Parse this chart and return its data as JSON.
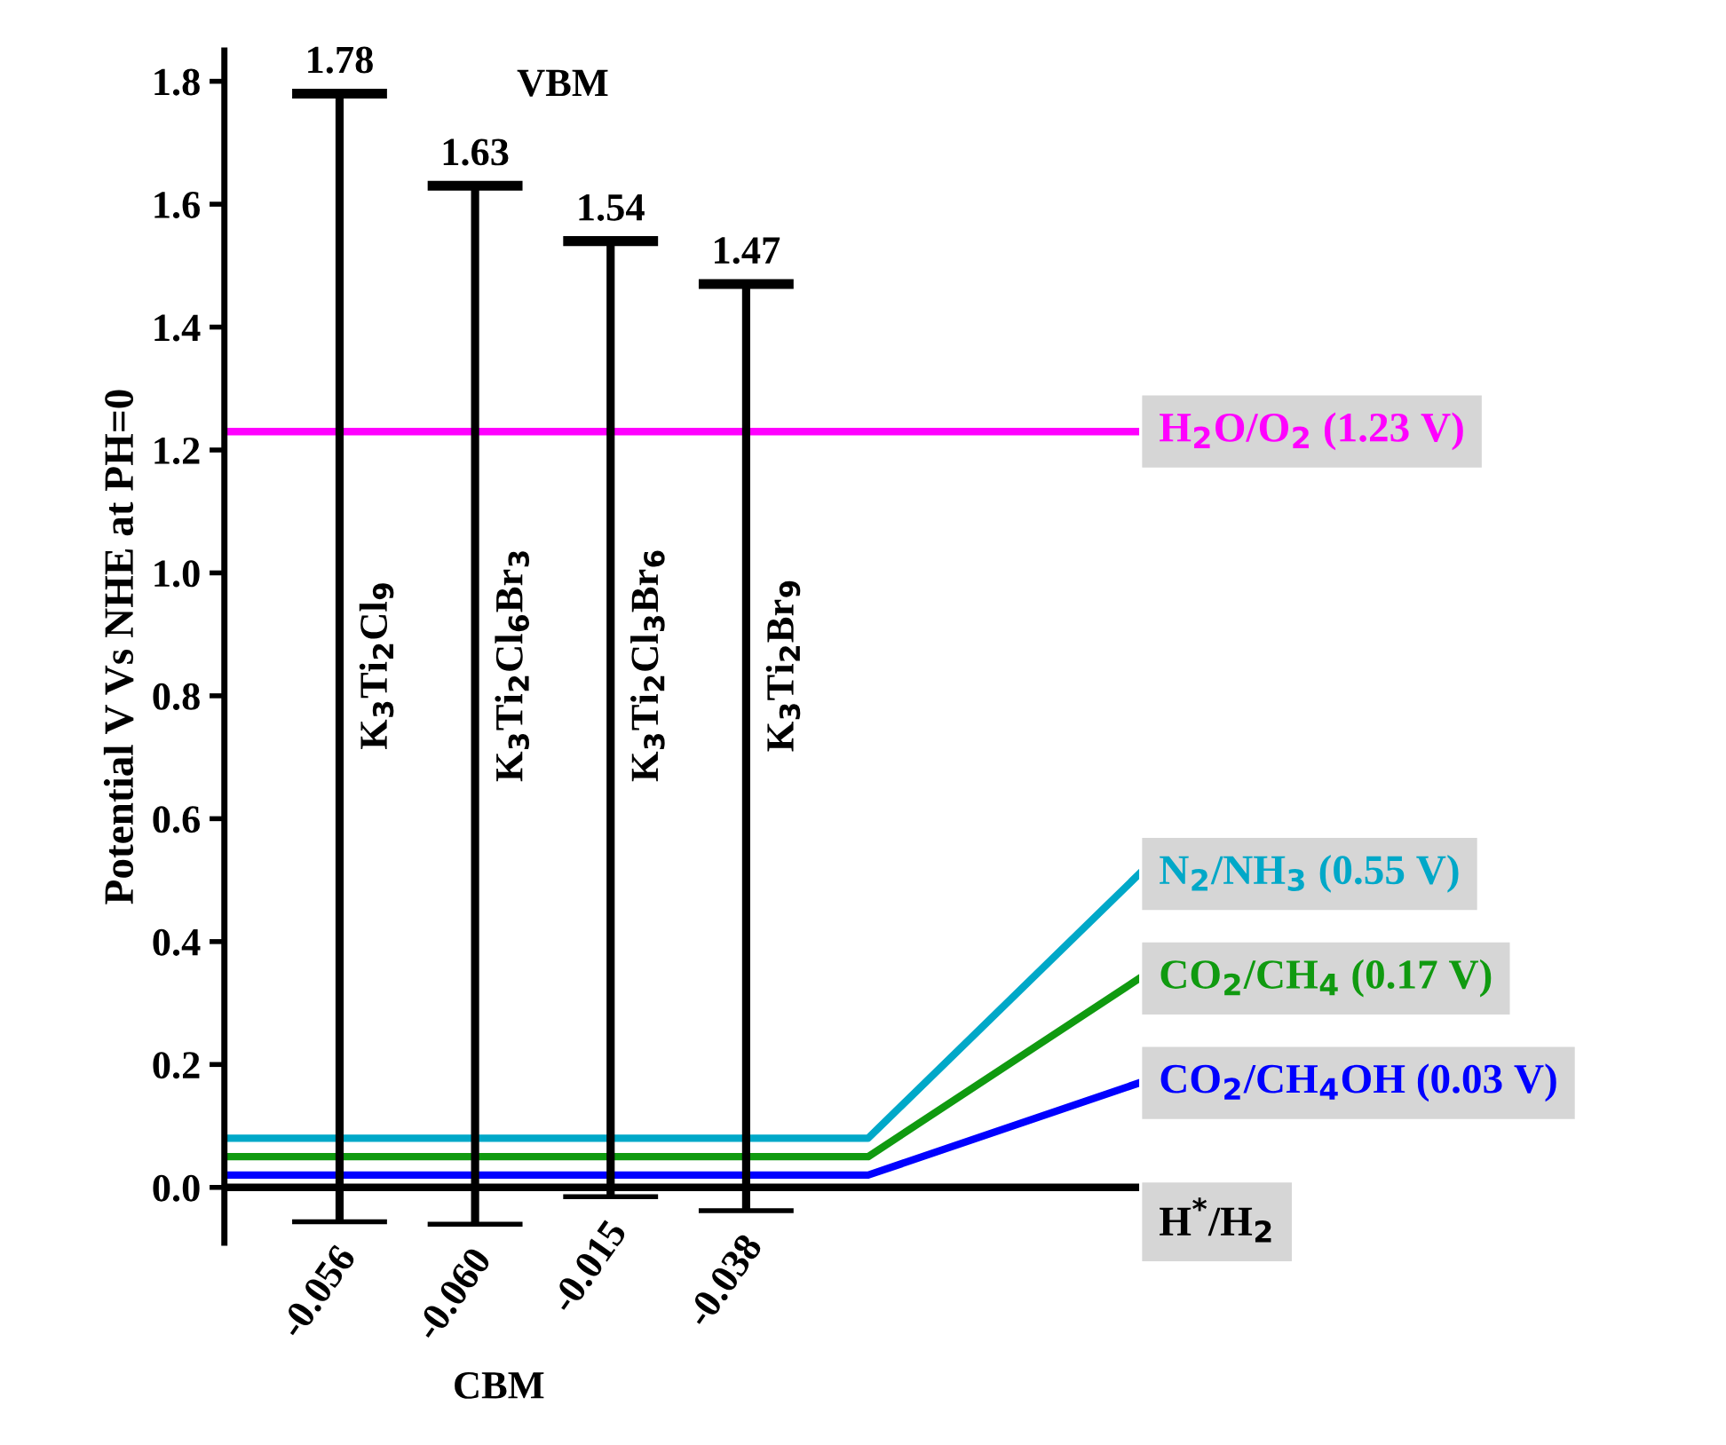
{
  "chart_data": {
    "type": "bar",
    "ylabel": "Potential V Vs NHE at PH=0",
    "xlabel": "CBM",
    "categories": [
      "K$_{3}$Ti$_{2}$Cl$_{9}$",
      "K$_{3}$Ti$_{2}$Cl$_{6}$Br$_{3}$",
      "K$_{3}$Ti$_{2}$Cl$_{3}$Br$_{6}$",
      "K$_{3}$Ti$_{2}$Br$_{9}$"
    ],
    "base": [
      -0.056,
      -0.06,
      -0.015,
      -0.038
    ],
    "values": [
      1.836,
      1.69,
      1.555,
      1.508
    ],
    "color": "#000000",
    "ylim": [
      -0.09,
      1.85
    ],
    "yticks": [
      {
        "value": 0,
        "label": "0.0"
      },
      {
        "value": 0.2,
        "label": "0.2"
      },
      {
        "value": 0.4,
        "label": "0.4"
      },
      {
        "value": 0.6,
        "label": "0.6"
      },
      {
        "value": 0.8,
        "label": "0.8"
      },
      {
        "value": 1.0,
        "label": "1.0"
      },
      {
        "value": 1.2,
        "label": "1.2"
      },
      {
        "value": 1.4,
        "label": "1.4"
      },
      {
        "value": 1.6,
        "label": "1.6"
      },
      {
        "value": 1.8,
        "label": "1.8"
      }
    ],
    "tick_labels": "y",
    "grid": false,
    "ref_lines": [
      {
        "axis": "y",
        "value": 1.23,
        "label": "H$_{2}$O/O$_{2}$ (1.23 V)",
        "color": "#ff00ff"
      },
      {
        "axis": "y",
        "value": 0.08,
        "label": "N$_{2}$/NH$_{3}$ (0.55 V)",
        "color": "#00a8c8"
      },
      {
        "axis": "y",
        "value": 0.05,
        "label": "CO$_{2}$/CH$_{4}$ (0.17 V)",
        "color": "#109a10"
      },
      {
        "axis": "y",
        "value": 0.02,
        "label": "CO$_{2}$/CH$_{4}$OH (0.03 V)",
        "color": "#0000ff"
      },
      {
        "axis": "y",
        "value": 0,
        "label": "H$^{*}$/H$_{2}$",
        "color": "#000000"
      }
    ],
    "annotations": [
      "VBM",
      "1.78",
      "1.63",
      "1.54",
      "1.47",
      "-0.056",
      "-0.060",
      "-0.015",
      "-0.038"
    ]
  }
}
